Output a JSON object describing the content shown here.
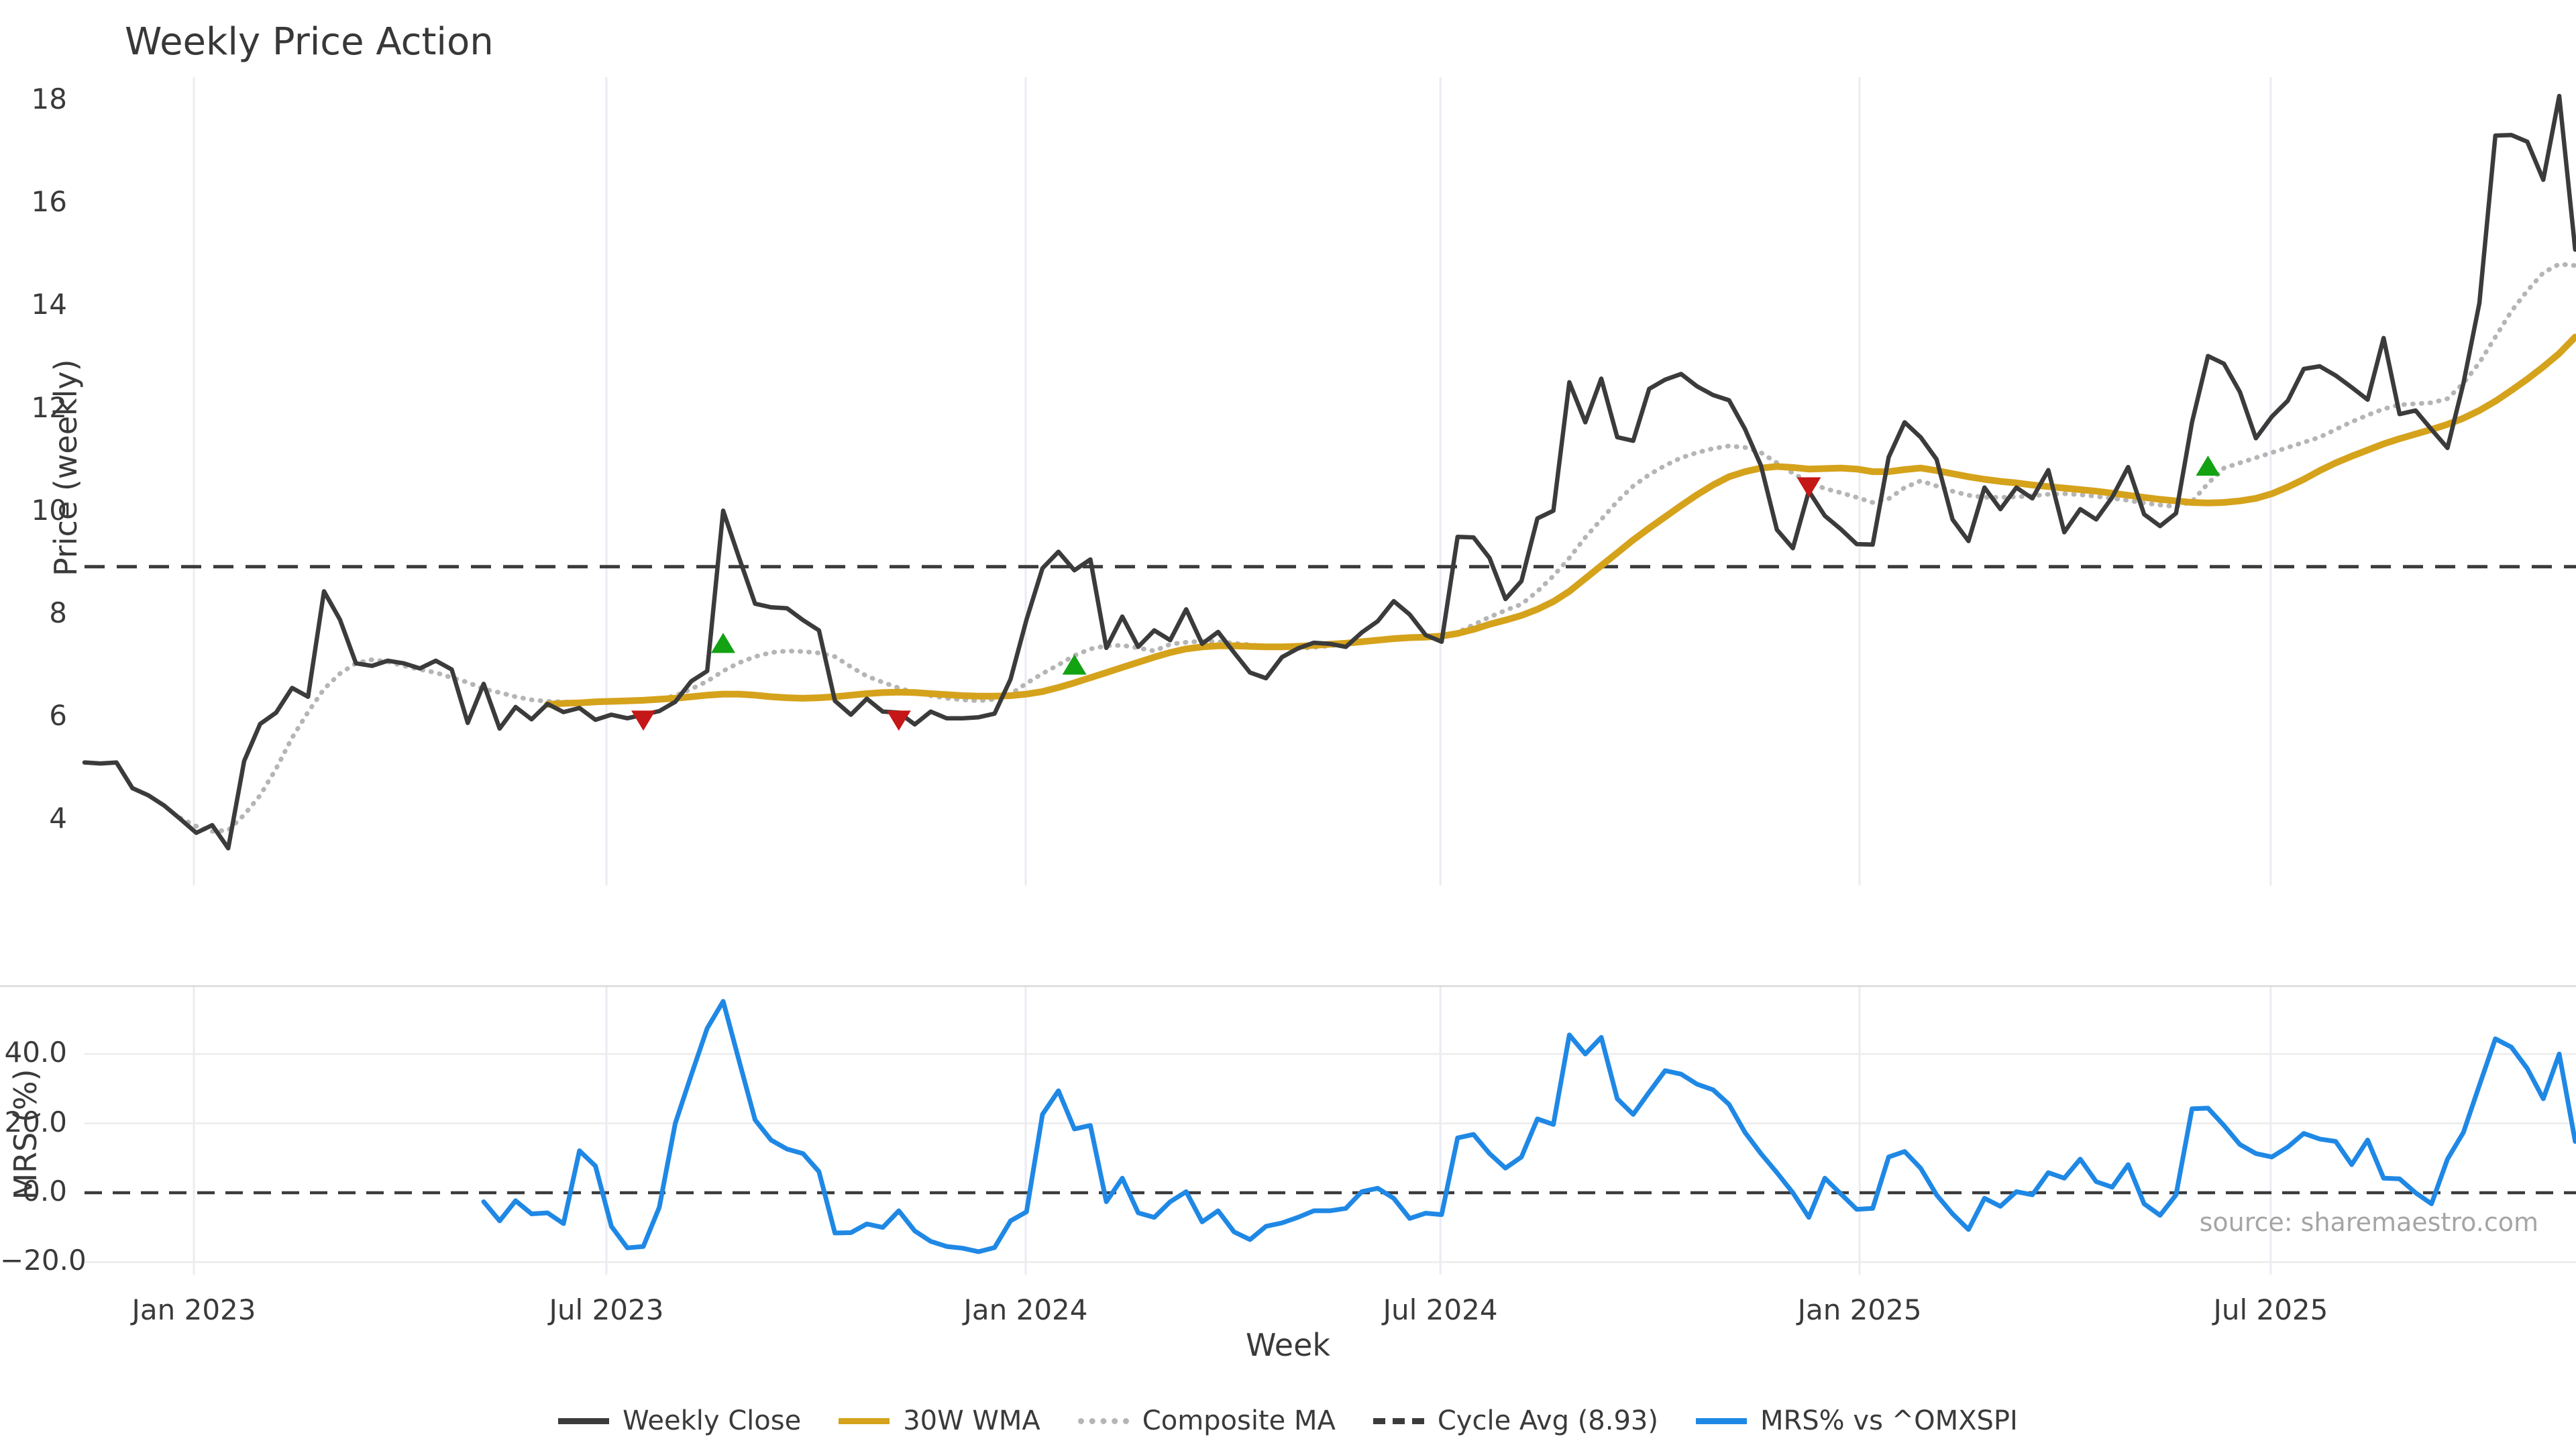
{
  "title": "Weekly Price Action",
  "source_note": "source: sharemaestro.com",
  "axes": {
    "top": {
      "ylabel": "Price (weekly)",
      "yticks": [
        18,
        16,
        14,
        12,
        10,
        8,
        6,
        4
      ]
    },
    "bottom": {
      "ylabel": "MRS (%)",
      "yticks": [
        "40.0",
        "20.0",
        "0.0",
        "−20.0"
      ],
      "ytick_values": [
        40,
        20,
        0,
        -20
      ]
    },
    "xlabel": "Week",
    "xticks": [
      {
        "label": "Jan 2023",
        "week": 6.85
      },
      {
        "label": "Jul 2023",
        "week": 32.69
      },
      {
        "label": "Jan 2024",
        "week": 58.95
      },
      {
        "label": "Jul 2024",
        "week": 84.92
      },
      {
        "label": "Jan 2025",
        "week": 111.18
      },
      {
        "label": "Jul 2025",
        "week": 136.93
      }
    ]
  },
  "legend": [
    {
      "label": "Weekly Close",
      "color": "#3b3b3b",
      "style": "solid"
    },
    {
      "label": "30W WMA",
      "color": "#d5a21b",
      "style": "solid"
    },
    {
      "label": "Composite MA",
      "color": "#b5b5b5",
      "style": "dotted"
    },
    {
      "label": "Cycle Avg (8.93)",
      "color": "#3b3b3b",
      "style": "dashed"
    },
    {
      "label": "MRS% vs ^OMXSPI",
      "color": "#1f88e5",
      "style": "solid"
    }
  ],
  "colors": {
    "weekly_close": "#3b3b3b",
    "wma30": "#d5a21b",
    "composite": "#b5b5b5",
    "cycle_avg": "#3b3b3b",
    "mrs": "#1f88e5",
    "buy_marker": "#12a212",
    "sell_marker": "#c51717",
    "grid_vertical": "#ebebf3",
    "grid_horizontal": "#ececec",
    "panel_spine": "#d9d9d9"
  },
  "chart_data": {
    "type": "line",
    "title": "Weekly Price Action",
    "xlabel": "Week",
    "top_panel": {
      "ylabel": "Price (weekly)",
      "ylim": [
        3.2,
        18.6
      ],
      "cycle_avg": 8.93,
      "series": [
        {
          "name": "Weekly Close",
          "start_week": 0,
          "values": [
            5.12,
            5.1,
            5.12,
            4.62,
            4.48,
            4.28,
            4.02,
            3.75,
            3.9,
            3.45,
            5.15,
            5.87,
            6.09,
            6.57,
            6.4,
            8.45,
            7.9,
            7.05,
            7.0,
            7.1,
            7.05,
            6.95,
            7.1,
            6.93,
            5.89,
            6.65,
            5.78,
            6.2,
            5.96,
            6.26,
            6.1,
            6.18,
            5.95,
            6.05,
            5.98,
            6.05,
            6.12,
            6.3,
            6.7,
            6.9,
            10.02,
            9.1,
            8.21,
            8.14,
            8.12,
            7.89,
            7.69,
            6.32,
            6.05,
            6.36,
            6.11,
            6.09,
            5.86,
            6.11,
            5.98,
            5.98,
            6.0,
            6.07,
            6.74,
            7.9,
            8.9,
            9.22,
            8.86,
            9.07,
            7.35,
            7.96,
            7.37,
            7.69,
            7.5,
            8.1,
            7.43,
            7.66,
            7.26,
            6.87,
            6.76,
            7.17,
            7.34,
            7.45,
            7.43,
            7.37,
            7.65,
            7.87,
            8.26,
            8.0,
            7.6,
            7.47,
            9.51,
            9.5,
            9.1,
            8.3,
            8.65,
            9.87,
            10.02,
            12.52,
            11.74,
            12.59,
            11.45,
            11.38,
            12.39,
            12.57,
            12.68,
            12.44,
            12.27,
            12.17,
            11.61,
            10.9,
            9.65,
            9.29,
            10.4,
            9.92,
            9.66,
            9.37,
            9.36,
            11.06,
            11.74,
            11.45,
            11.02,
            9.85,
            9.43,
            10.47,
            10.05,
            10.47,
            10.26,
            10.81,
            9.6,
            10.05,
            9.85,
            10.28,
            10.87,
            9.95,
            9.72,
            9.97,
            11.74,
            13.03,
            12.88,
            12.33,
            11.43,
            11.85,
            12.16,
            12.78,
            12.83,
            12.65,
            12.42,
            12.18,
            13.38,
            11.9,
            11.97,
            11.6,
            11.24,
            12.5,
            14.06,
            17.32,
            17.33,
            17.2,
            16.46,
            18.09,
            15.1
          ]
        },
        {
          "name": "30W WMA",
          "start_week": 29,
          "values": [
            6.25,
            6.27,
            6.28,
            6.3,
            6.31,
            6.32,
            6.33,
            6.35,
            6.37,
            6.4,
            6.43,
            6.45,
            6.45,
            6.43,
            6.4,
            6.38,
            6.37,
            6.38,
            6.4,
            6.43,
            6.46,
            6.48,
            6.49,
            6.48,
            6.46,
            6.44,
            6.42,
            6.41,
            6.41,
            6.42,
            6.45,
            6.5,
            6.58,
            6.67,
            6.77,
            6.87,
            6.97,
            7.07,
            7.17,
            7.26,
            7.33,
            7.37,
            7.39,
            7.39,
            7.38,
            7.37,
            7.37,
            7.38,
            7.4,
            7.42,
            7.44,
            7.47,
            7.5,
            7.53,
            7.55,
            7.56,
            7.58,
            7.63,
            7.71,
            7.81,
            7.89,
            7.98,
            8.1,
            8.25,
            8.45,
            8.7,
            8.95,
            9.2,
            9.45,
            9.68,
            9.9,
            10.12,
            10.33,
            10.52,
            10.68,
            10.78,
            10.85,
            10.88,
            10.86,
            10.83,
            10.84,
            10.85,
            10.83,
            10.78,
            10.78,
            10.82,
            10.85,
            10.8,
            10.74,
            10.68,
            10.63,
            10.59,
            10.56,
            10.52,
            10.49,
            10.46,
            10.43,
            10.4,
            10.36,
            10.32,
            10.28,
            10.24,
            10.21,
            10.18,
            10.17,
            10.18,
            10.21,
            10.26,
            10.35,
            10.48,
            10.63,
            10.8,
            10.95,
            11.08,
            11.2,
            11.32,
            11.42,
            11.51,
            11.6,
            11.7,
            11.82,
            11.97,
            12.15,
            12.36,
            12.58,
            12.82,
            13.08,
            13.4
          ]
        },
        {
          "name": "Composite MA",
          "start_week": 6,
          "values": [
            4.04,
            3.88,
            3.78,
            3.8,
            4.1,
            4.48,
            5.0,
            5.6,
            6.1,
            6.55,
            6.85,
            7.05,
            7.12,
            7.08,
            7.0,
            6.93,
            6.87,
            6.77,
            6.68,
            6.55,
            6.48,
            6.4,
            6.34,
            6.31,
            6.3,
            6.29,
            6.29,
            6.3,
            6.31,
            6.32,
            6.35,
            6.42,
            6.55,
            6.7,
            6.9,
            7.06,
            7.18,
            7.26,
            7.29,
            7.28,
            7.25,
            7.18,
            6.98,
            6.8,
            6.68,
            6.57,
            6.48,
            6.42,
            6.37,
            6.34,
            6.32,
            6.35,
            6.45,
            6.66,
            6.85,
            7.02,
            7.2,
            7.33,
            7.39,
            7.4,
            7.35,
            7.29,
            7.42,
            7.46,
            7.48,
            7.47,
            7.44,
            7.41,
            7.38,
            7.35,
            7.34,
            7.36,
            7.39,
            7.42,
            7.46,
            7.51,
            7.55,
            7.57,
            7.57,
            7.58,
            7.65,
            7.8,
            7.95,
            8.08,
            8.2,
            8.45,
            8.75,
            9.1,
            9.5,
            9.85,
            10.2,
            10.5,
            10.72,
            10.9,
            11.05,
            11.15,
            11.23,
            11.28,
            11.25,
            11.15,
            10.95,
            10.75,
            10.57,
            10.45,
            10.37,
            10.28,
            10.18,
            10.25,
            10.47,
            10.6,
            10.5,
            10.4,
            10.32,
            10.28,
            10.28,
            10.29,
            10.31,
            10.34,
            10.35,
            10.33,
            10.3,
            10.26,
            10.22,
            10.17,
            10.13,
            10.1,
            10.2,
            10.55,
            10.85,
            10.95,
            11.05,
            11.15,
            11.25,
            11.35,
            11.45,
            11.6,
            11.75,
            11.88,
            12.0,
            12.08,
            12.1,
            12.12,
            12.2,
            12.5,
            12.9,
            13.4,
            13.9,
            14.3,
            14.65,
            14.82,
            14.79
          ]
        }
      ],
      "buy_signals": [
        {
          "week": 40,
          "price": 7.42
        },
        {
          "week": 62,
          "price": 7.0
        },
        {
          "week": 133,
          "price": 10.87
        }
      ],
      "sell_signals": [
        {
          "week": 35,
          "price": 5.96
        },
        {
          "week": 51,
          "price": 5.96
        },
        {
          "week": 108,
          "price": 10.5
        }
      ]
    },
    "bottom_panel": {
      "ylabel": "MRS (%)",
      "ylim": [
        -28,
        60
      ],
      "zero_line": 0,
      "series": [
        {
          "name": "MRS% vs ^OMXSPI",
          "start_week": 25,
          "values": [
            -2.6,
            -8.1,
            -2.3,
            -6.1,
            -5.8,
            -8.9,
            12.1,
            7.7,
            -9.7,
            -15.9,
            -15.5,
            -4.2,
            20.0,
            33.9,
            47.4,
            55.2,
            38.0,
            21.0,
            15.2,
            12.6,
            11.3,
            6.1,
            -11.6,
            -11.5,
            -9.0,
            -10.0,
            -5.2,
            -11.0,
            -14.0,
            -15.5,
            -16.0,
            -17.0,
            -15.8,
            -8.1,
            -5.5,
            22.6,
            29.4,
            18.4,
            19.4,
            -2.6,
            4.2,
            -5.8,
            -7.1,
            -2.6,
            0.3,
            -8.4,
            -5.2,
            -11.3,
            -13.5,
            -9.7,
            -8.7,
            -7.1,
            -5.2,
            -5.2,
            -4.5,
            0.3,
            1.3,
            -1.6,
            -7.4,
            -5.9,
            -6.3,
            15.8,
            16.8,
            11.3,
            7.1,
            10.3,
            21.3,
            19.7,
            45.5,
            40.0,
            44.8,
            27.1,
            22.6,
            29.0,
            35.2,
            34.2,
            31.3,
            29.7,
            25.5,
            17.4,
            11.3,
            5.8,
            0.0,
            -7.1,
            4.2,
            -0.3,
            -4.8,
            -4.5,
            10.3,
            11.9,
            7.1,
            -0.6,
            -6.1,
            -10.6,
            -1.6,
            -3.9,
            0.3,
            -0.6,
            5.8,
            4.2,
            9.7,
            3.2,
            1.6,
            8.1,
            -3.2,
            -6.5,
            -0.6,
            24.2,
            24.4,
            19.4,
            13.9,
            11.3,
            10.3,
            13.2,
            17.1,
            15.5,
            14.8,
            8.1,
            15.2,
            4.2,
            4.0,
            0.0,
            -3.2,
            9.7,
            17.4,
            31.0,
            44.4,
            42.0,
            35.8,
            27.1,
            40.0,
            14.8
          ]
        }
      ]
    }
  }
}
